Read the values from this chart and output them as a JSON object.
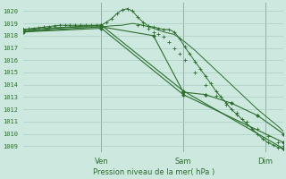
{
  "bg_color": "#cce8df",
  "grid_color": "#aacfc5",
  "line_color": "#2d6e2d",
  "title": "Pression niveau de la mer( hPa )",
  "ylabel_values": [
    1009,
    1010,
    1011,
    1012,
    1013,
    1014,
    1015,
    1016,
    1017,
    1018,
    1019,
    1020
  ],
  "ylim": [
    1008.5,
    1020.7
  ],
  "xlim": [
    0.0,
    1.0
  ],
  "x_ticks": [
    0.3,
    0.615,
    0.93
  ],
  "x_tick_labels": [
    "Ven",
    "Sam",
    "Dim"
  ],
  "line1_x": [
    0.0,
    0.02,
    0.04,
    0.06,
    0.08,
    0.1,
    0.12,
    0.14,
    0.16,
    0.18,
    0.2,
    0.22,
    0.24,
    0.26,
    0.28,
    0.3,
    0.32,
    0.34,
    0.36,
    0.38,
    0.4,
    0.42,
    0.44,
    0.46,
    0.48,
    0.5,
    0.52,
    0.54,
    0.56,
    0.58,
    0.6,
    0.62,
    0.64,
    0.66,
    0.68,
    0.7,
    0.72,
    0.74,
    0.76,
    0.78,
    0.8,
    0.82,
    0.84,
    0.86,
    0.88,
    0.9,
    0.92,
    0.94,
    0.96,
    0.98,
    1.0
  ],
  "line1_y": [
    1018.5,
    1018.55,
    1018.6,
    1018.65,
    1018.7,
    1018.75,
    1018.8,
    1018.85,
    1018.85,
    1018.85,
    1018.85,
    1018.85,
    1018.85,
    1018.85,
    1018.85,
    1018.85,
    1019.1,
    1019.4,
    1019.8,
    1020.1,
    1020.2,
    1020.0,
    1019.5,
    1019.1,
    1018.8,
    1018.7,
    1018.6,
    1018.5,
    1018.5,
    1018.3,
    1017.8,
    1017.1,
    1016.5,
    1015.9,
    1015.3,
    1014.7,
    1014.1,
    1013.5,
    1013.0,
    1012.5,
    1012.0,
    1011.6,
    1011.2,
    1010.8,
    1010.4,
    1010.0,
    1009.6,
    1009.3,
    1009.1,
    1008.9,
    1008.8
  ],
  "line2_x": [
    0.0,
    0.04,
    0.08,
    0.12,
    0.16,
    0.2,
    0.24,
    0.28,
    0.3,
    0.34,
    0.38,
    0.42,
    0.46,
    0.5,
    0.54,
    0.58,
    0.62,
    0.66,
    0.7,
    0.74,
    0.78,
    0.82,
    0.86,
    0.9,
    0.94,
    0.98,
    1.0
  ],
  "line2_y": [
    1018.4,
    1018.45,
    1018.5,
    1018.6,
    1018.65,
    1018.7,
    1018.72,
    1018.72,
    1018.72,
    1018.8,
    1018.85,
    1019.0,
    1018.85,
    1018.6,
    1018.3,
    1018.1,
    1017.5,
    1016.8,
    1016.0,
    1015.2,
    1014.4,
    1013.6,
    1012.8,
    1012.0,
    1011.3,
    1010.6,
    1010.2
  ],
  "line3_x": [
    0.0,
    0.3,
    0.615,
    1.0
  ],
  "line3_y": [
    1018.5,
    1018.85,
    1013.5,
    1008.8
  ],
  "line4_x": [
    0.0,
    0.3,
    0.615,
    1.0
  ],
  "line4_y": [
    1018.3,
    1018.6,
    1013.2,
    1009.3
  ],
  "line5_x": [
    0.0,
    0.3,
    0.5,
    0.615,
    0.7,
    0.8,
    0.9,
    1.0
  ],
  "line5_y": [
    1018.35,
    1018.72,
    1018.0,
    1013.4,
    1013.2,
    1012.5,
    1011.5,
    1010.0
  ],
  "marker1_x": [
    0.0,
    0.02,
    0.04,
    0.06,
    0.08,
    0.1,
    0.12,
    0.14,
    0.16,
    0.18,
    0.2,
    0.22,
    0.24,
    0.26,
    0.28,
    0.3,
    0.32,
    0.34,
    0.36,
    0.38,
    0.4,
    0.42,
    0.44,
    0.46,
    0.48,
    0.5,
    0.52,
    0.54,
    0.56,
    0.58,
    0.6,
    0.62,
    0.64,
    0.66,
    0.68,
    0.7,
    0.72,
    0.74,
    0.76,
    0.78,
    0.8,
    0.82,
    0.84,
    0.86,
    0.88,
    0.9,
    0.92,
    0.94,
    0.96,
    0.98,
    1.0
  ],
  "marker1_y": [
    1018.5,
    1018.55,
    1018.6,
    1018.65,
    1018.7,
    1018.75,
    1018.8,
    1018.85,
    1018.85,
    1018.85,
    1018.85,
    1018.85,
    1018.85,
    1018.85,
    1018.85,
    1018.85,
    1019.1,
    1019.4,
    1019.8,
    1020.1,
    1020.2,
    1020.0,
    1019.5,
    1019.1,
    1018.8,
    1018.7,
    1018.6,
    1018.5,
    1018.5,
    1018.3,
    1017.8,
    1017.1,
    1016.5,
    1015.9,
    1015.3,
    1014.7,
    1014.1,
    1013.5,
    1013.0,
    1012.5,
    1012.0,
    1011.6,
    1011.2,
    1010.8,
    1010.4,
    1010.0,
    1009.6,
    1009.3,
    1009.1,
    1008.9,
    1008.8
  ],
  "marker2_x": [
    0.44,
    0.46,
    0.48,
    0.5,
    0.52,
    0.54,
    0.56,
    0.58,
    0.6,
    0.62,
    0.66,
    0.7,
    0.74,
    0.78,
    0.82,
    0.86,
    0.9,
    0.94,
    0.98,
    1.0
  ],
  "marker2_y": [
    1018.85,
    1018.85,
    1018.6,
    1018.3,
    1018.1,
    1017.9,
    1017.5,
    1017.0,
    1016.5,
    1016.0,
    1015.0,
    1014.0,
    1013.1,
    1012.4,
    1011.7,
    1011.0,
    1010.4,
    1009.8,
    1009.3,
    1009.0
  ]
}
